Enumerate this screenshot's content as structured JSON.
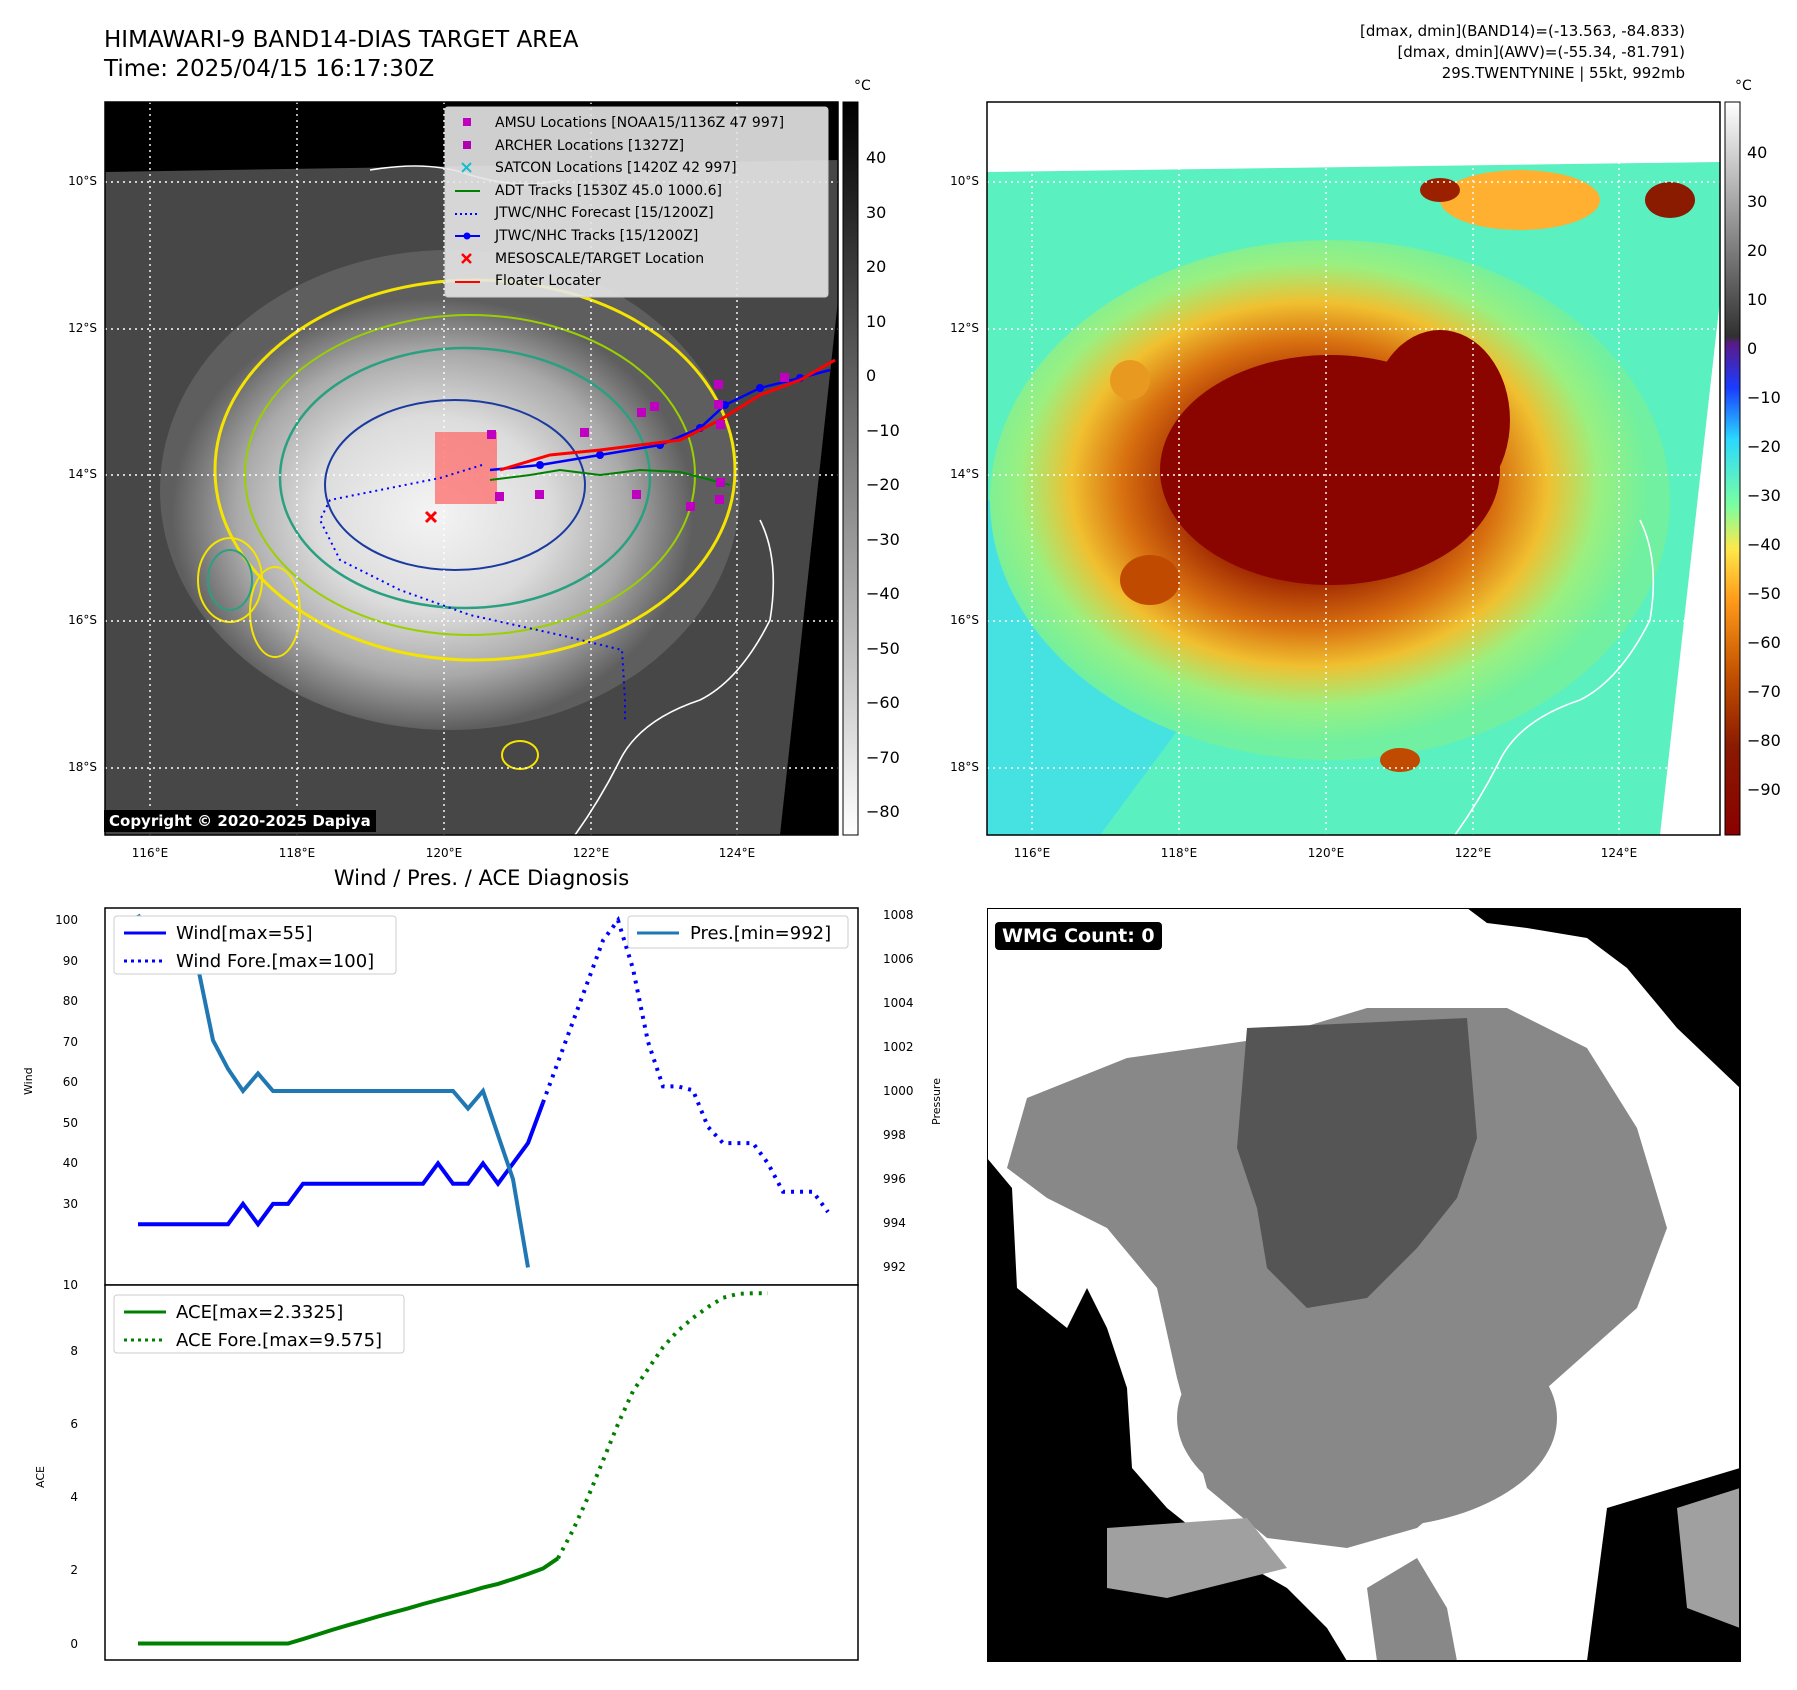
{
  "header": {
    "title": "HIMAWARI-9 BAND14-DIAS TARGET AREA",
    "time": "Time: 2025/04/15 16:17:30Z",
    "info_line1": "[dmax, dmin](BAND14)=(-13.563, -84.833)",
    "info_line2": "[dmax, dmin](AWV)=(-55.34, -81.791)",
    "info_line3": "29S.TWENTYNINE | 55kt, 992mb"
  },
  "map": {
    "unit": "°C",
    "copyright": "Copyright © 2020-2025 Dapiya",
    "lon_ticks": [
      "116°E",
      "118°E",
      "120°E",
      "122°E",
      "124°E"
    ],
    "lat_ticks": [
      "10°S",
      "12°S",
      "14°S",
      "16°S",
      "18°S"
    ],
    "gray_cbar_ticks": [
      "40",
      "30",
      "20",
      "10",
      "0",
      "−10",
      "−20",
      "−30",
      "−40",
      "−50",
      "−60",
      "−70",
      "−80"
    ],
    "color_cbar_ticks": [
      "40",
      "30",
      "20",
      "10",
      "0",
      "−10",
      "−20",
      "−30",
      "−40",
      "−50",
      "−60",
      "−70",
      "−80",
      "−90"
    ],
    "legend": [
      {
        "label": "AMSU Locations [NOAA15/1136Z 47 997]",
        "color": "#c000c0",
        "marker": "square"
      },
      {
        "label": "ARCHER Locations [1327Z]",
        "color": "#b000b0",
        "marker": "square"
      },
      {
        "label": "SATCON Locations [1420Z 42 997]",
        "color": "#17becf",
        "marker": "x"
      },
      {
        "label": "ADT Tracks [1530Z 45.0 1000.6]",
        "color": "#008000",
        "marker": "line"
      },
      {
        "label": "JTWC/NHC Forecast [15/1200Z]",
        "color": "#0000ff",
        "marker": "dotted"
      },
      {
        "label": "JTWC/NHC Tracks [15/1200Z]",
        "color": "#0000ff",
        "marker": "line-dot"
      },
      {
        "label": "MESOSCALE/TARGET Location",
        "color": "#ff0000",
        "marker": "x"
      },
      {
        "label": "Floater Locater",
        "color": "#ff0000",
        "marker": "line"
      }
    ]
  },
  "diag": {
    "title": "Wind / Pres. / ACE Diagnosis",
    "wind_ylabel": "Wind",
    "pres_ylabel": "Pressure",
    "ace_ylabel": "ACE",
    "legend_wind": "Wind[max=55]",
    "legend_wind_fore": "Wind Fore.[max=100]",
    "legend_pres": "Pres.[min=992]",
    "legend_ace": "ACE[max=2.3325]",
    "legend_ace_fore": "ACE Fore.[max=9.575]",
    "wind_ticks": [
      "100",
      "90",
      "80",
      "70",
      "60",
      "50",
      "40",
      "30",
      "10"
    ],
    "pres_ticks": [
      "1008",
      "1006",
      "1004",
      "1002",
      "1000",
      "998",
      "996",
      "994",
      "992"
    ],
    "ace_ticks": [
      "8",
      "6",
      "4",
      "2",
      "0"
    ]
  },
  "wmg": {
    "label": "WMG Count: 0"
  },
  "colors": {
    "wind": "#0000ff",
    "pressure": "#1f77b4",
    "ace": "#008000"
  },
  "chart_data": [
    {
      "type": "line",
      "title": "Wind / Pres. / ACE Diagnosis",
      "ylabel": "Wind",
      "ylim": [
        10,
        103
      ],
      "series": [
        {
          "name": "Wind[max=55]",
          "style": "solid",
          "color": "#0000ff",
          "values": [
            25,
            25,
            25,
            25,
            25,
            25,
            25,
            30,
            25,
            30,
            30,
            35,
            35,
            35,
            35,
            35,
            35,
            35,
            35,
            35,
            40,
            35,
            35,
            40,
            35,
            40,
            45,
            55
          ]
        },
        {
          "name": "Wind Fore.[max=100]",
          "style": "dotted",
          "color": "#0000ff",
          "values": [
            55,
            65,
            75,
            85,
            95,
            100,
            88,
            70,
            59,
            59,
            58,
            49,
            45,
            45,
            45,
            40,
            33,
            33,
            33,
            28
          ]
        }
      ]
    },
    {
      "type": "line",
      "ylabel": "Pressure",
      "ylim": [
        991.2,
        1008.3
      ],
      "series": [
        {
          "name": "Pres.[min=992]",
          "style": "solid",
          "color": "#1f77b4",
          "values": [
            1008,
            1006.6,
            1006.6,
            1005.6,
            1005.6,
            1002.3,
            1001,
            1000,
            1000.8,
            1000,
            1000,
            1000,
            1000,
            1000,
            1000,
            1000,
            1000,
            1000,
            1000,
            1000,
            1000,
            1000,
            999.2,
            1000,
            998,
            996,
            992
          ]
        }
      ]
    },
    {
      "type": "line",
      "ylabel": "ACE",
      "ylim": [
        -0.45,
        9.8
      ],
      "series": [
        {
          "name": "ACE[max=2.3325]",
          "style": "solid",
          "color": "#008000",
          "values": [
            0,
            0,
            0,
            0,
            0,
            0,
            0,
            0,
            0,
            0,
            0,
            0.12,
            0.25,
            0.38,
            0.5,
            0.62,
            0.74,
            0.85,
            0.96,
            1.08,
            1.19,
            1.3,
            1.41,
            1.53,
            1.63,
            1.76,
            1.9,
            2.05,
            2.33
          ]
        },
        {
          "name": "ACE Fore.[max=9.575]",
          "style": "dotted",
          "color": "#008000",
          "values": [
            2.33,
            3.1,
            4.0,
            5.0,
            6.0,
            6.9,
            7.5,
            8.1,
            8.55,
            8.9,
            9.2,
            9.45,
            9.56,
            9.575,
            9.575
          ]
        }
      ]
    }
  ]
}
